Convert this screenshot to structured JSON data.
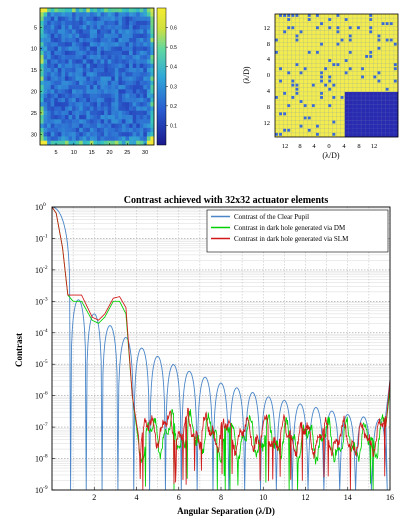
{
  "chart_data": [
    {
      "type": "heatmap",
      "x_ticks": [
        5,
        10,
        15,
        20,
        25,
        30
      ],
      "y_ticks": [
        5,
        10,
        15,
        20,
        25,
        30
      ],
      "colorbar_ticks": [
        "0.1",
        "0.2",
        "0.3",
        "0.4",
        "0.5",
        "0.6"
      ],
      "colorbar_range": [
        0,
        0.7
      ],
      "grid_size": [
        32,
        32
      ],
      "colors": {
        "low": "#1a2a9c",
        "mid": "#2f7ad0",
        "high": "#36c8b8",
        "top": "#f2e93a"
      }
    },
    {
      "type": "heatmap",
      "ylabel": "(λ/D)",
      "xlabel": "(λ/D)",
      "x_ticks": [
        "12",
        "8",
        "4",
        "0",
        "4",
        "8",
        "12"
      ],
      "y_ticks": [
        "12",
        "8",
        "4",
        "0",
        "4",
        "8",
        "12"
      ],
      "colors": {
        "field": "#f2ec50",
        "hole": "#2a2ab0",
        "speckle": "#3a6ad8"
      }
    },
    {
      "type": "line",
      "title": "Contrast achieved with 32x32 actuator elements",
      "xlabel": "Angular Separation (λ/D)",
      "ylabel": "Contrast",
      "xlim": [
        0,
        16
      ],
      "ylim_exp": [
        -9,
        0
      ],
      "y_scale": "log",
      "x_ticks": [
        "2",
        "4",
        "6",
        "8",
        "10",
        "12",
        "14",
        "16"
      ],
      "y_tick_labels": [
        "10",
        "10",
        "10",
        "10",
        "10",
        "10",
        "10",
        "10",
        "10",
        "10"
      ],
      "y_tick_exponents": [
        "0",
        "-1",
        "-2",
        "-3",
        "-4",
        "-5",
        "-6",
        "-7",
        "-8",
        "-9"
      ],
      "grid": true,
      "legend_position": "top-right",
      "series": [
        {
          "name": "Contrast of the Clear Pupil",
          "color": "#4a86c8",
          "model": "airy",
          "envelope_log10_at_x": [
            [
              0.0,
              0.0
            ],
            [
              1.0,
              -2.8
            ],
            [
              2.0,
              -3.4
            ],
            [
              3.0,
              -3.9
            ],
            [
              4.0,
              -4.4
            ],
            [
              6.0,
              -5.1
            ],
            [
              8.0,
              -5.6
            ],
            [
              10.0,
              -6.0
            ],
            [
              12.0,
              -6.3
            ],
            [
              14.0,
              -6.6
            ],
            [
              16.0,
              -6.8
            ]
          ],
          "zeros_x": [
            0.88,
            1.62,
            2.37,
            3.12,
            3.87,
            4.62,
            5.37,
            6.12,
            6.87,
            7.62,
            8.37,
            9.12,
            9.87,
            10.62,
            11.37,
            12.12,
            12.87,
            13.62,
            14.37,
            15.12,
            15.87
          ],
          "end_rise": [
            [
              15.8,
              -6.6
            ],
            [
              16.0,
              -5.5
            ]
          ]
        },
        {
          "name": "Contrast in dark hole generated via DM",
          "color": "#00d000",
          "level_log10_at_x": [
            [
              0.0,
              0.0
            ],
            [
              0.2,
              -0.2
            ],
            [
              0.5,
              -1.3
            ],
            [
              0.75,
              -2.8
            ],
            [
              1.0,
              -3.0
            ],
            [
              1.4,
              -3.0
            ],
            [
              1.9,
              -3.6
            ],
            [
              2.2,
              -3.7
            ],
            [
              2.5,
              -3.5
            ],
            [
              2.9,
              -3.0
            ],
            [
              3.2,
              -3.0
            ],
            [
              3.5,
              -3.4
            ],
            [
              3.8,
              -6.0
            ],
            [
              4.1,
              -7.5
            ],
            [
              5.0,
              -7.2
            ],
            [
              8.0,
              -7.3
            ],
            [
              12.0,
              -7.4
            ],
            [
              15.0,
              -7.5
            ],
            [
              15.8,
              -7.0
            ],
            [
              16.0,
              -5.8
            ]
          ],
          "ripple_dex": 0.9
        },
        {
          "name": "Contrast in dark hole generated via SLM",
          "color": "#d01818",
          "level_log10_at_x": [
            [
              0.0,
              0.0
            ],
            [
              0.2,
              -0.2
            ],
            [
              0.5,
              -1.3
            ],
            [
              0.75,
              -2.8
            ],
            [
              1.0,
              -2.8
            ],
            [
              1.4,
              -2.8
            ],
            [
              1.9,
              -3.5
            ],
            [
              2.2,
              -3.6
            ],
            [
              2.5,
              -3.4
            ],
            [
              2.9,
              -2.9
            ],
            [
              3.2,
              -2.85
            ],
            [
              3.5,
              -3.2
            ],
            [
              3.8,
              -6.0
            ],
            [
              4.1,
              -7.3
            ],
            [
              5.0,
              -7.0
            ],
            [
              8.0,
              -7.2
            ],
            [
              12.0,
              -7.3
            ],
            [
              15.0,
              -7.4
            ],
            [
              15.8,
              -7.0
            ],
            [
              16.0,
              -5.5
            ]
          ],
          "ripple_dex": 0.75
        }
      ]
    }
  ]
}
